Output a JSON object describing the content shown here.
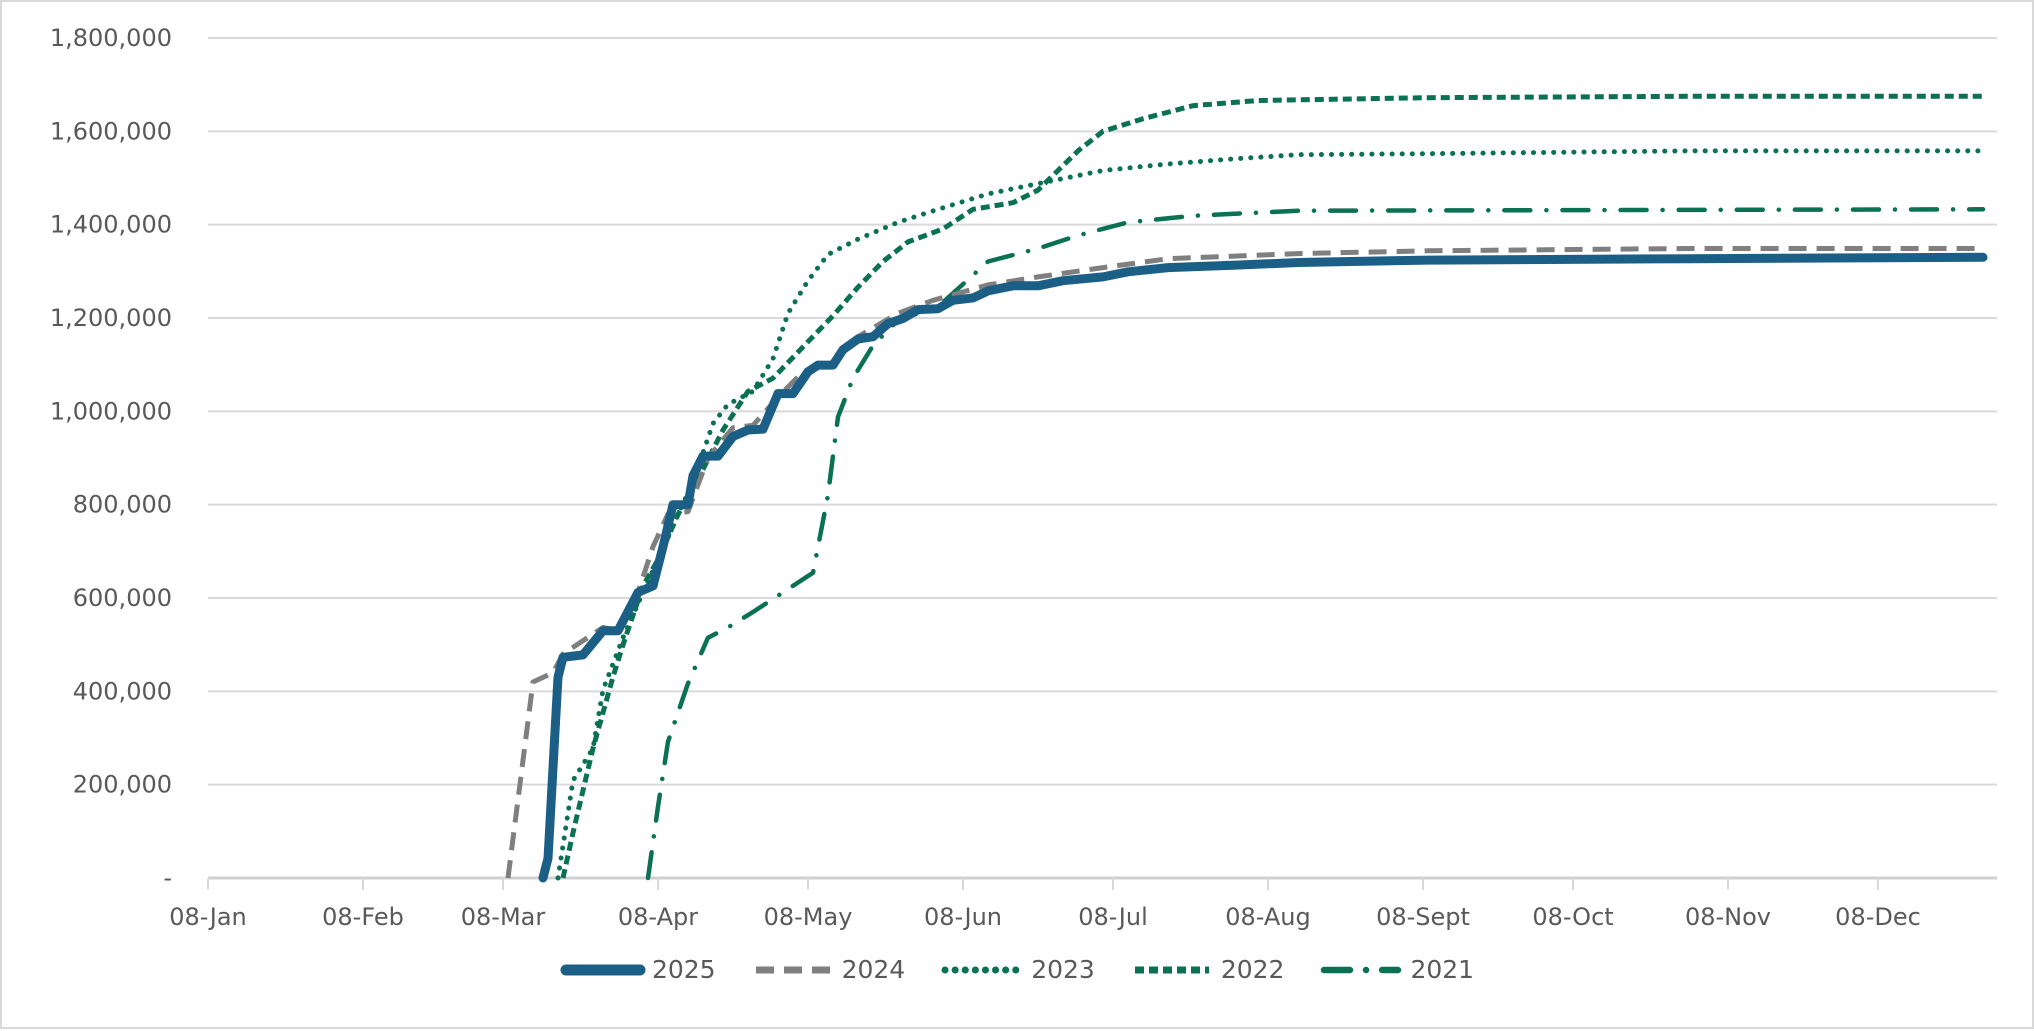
{
  "chart_data": {
    "type": "line",
    "title": "",
    "xlabel": "",
    "ylabel": "",
    "ylim": [
      0,
      1800000
    ],
    "yticks": [
      0,
      200000,
      400000,
      600000,
      800000,
      1000000,
      1200000,
      1400000,
      1600000,
      1800000
    ],
    "ytick_labels": [
      "-",
      "200,000",
      "400,000",
      "600,000",
      "800,000",
      "1,000,000",
      "1,200,000",
      "1,400,000",
      "1,600,000",
      "1,800,000"
    ],
    "xtick_labels": [
      "08-Jan",
      "08-Feb",
      "08-Mar",
      "08-Apr",
      "08-May",
      "08-Jun",
      "08-Jul",
      "08-Aug",
      "08-Sept",
      "08-Oct",
      "08-Nov",
      "08-Dec"
    ],
    "xlim": [
      "01-08",
      "12-31"
    ],
    "grid": "horizontal",
    "legend_position": "bottom",
    "series": [
      {
        "name": "2025",
        "color": "#1c5f86",
        "style": "solid-thick",
        "points": [
          [
            "03-16",
            0
          ],
          [
            "03-17",
            42000
          ],
          [
            "03-18",
            236000
          ],
          [
            "03-19",
            430000
          ],
          [
            "03-20",
            473000
          ],
          [
            "03-24",
            478000
          ],
          [
            "03-28",
            530000
          ],
          [
            "03-31",
            530000
          ],
          [
            "04-04",
            612000
          ],
          [
            "04-07",
            626000
          ],
          [
            "04-09",
            710000
          ],
          [
            "04-11",
            800000
          ],
          [
            "04-14",
            800000
          ],
          [
            "04-15",
            862000
          ],
          [
            "04-17",
            904000
          ],
          [
            "04-20",
            904000
          ],
          [
            "04-23",
            946000
          ],
          [
            "04-26",
            960000
          ],
          [
            "04-29",
            962000
          ],
          [
            "05-02",
            1038000
          ],
          [
            "05-05",
            1038000
          ],
          [
            "05-08",
            1085000
          ],
          [
            "05-10",
            1099000
          ],
          [
            "05-13",
            1099000
          ],
          [
            "05-15",
            1132000
          ],
          [
            "05-18",
            1155000
          ],
          [
            "05-21",
            1160000
          ],
          [
            "05-24",
            1188000
          ],
          [
            "05-27",
            1199000
          ],
          [
            "05-30",
            1218000
          ],
          [
            "06-03",
            1220000
          ],
          [
            "06-06",
            1238000
          ],
          [
            "06-10",
            1243000
          ],
          [
            "06-13",
            1258000
          ],
          [
            "06-18",
            1269000
          ],
          [
            "06-23",
            1269000
          ],
          [
            "06-28",
            1280000
          ],
          [
            "07-06",
            1288000
          ],
          [
            "07-11",
            1299000
          ],
          [
            "07-19",
            1308000
          ],
          [
            "08-01",
            1313000
          ],
          [
            "08-14",
            1319000
          ],
          [
            "09-09",
            1324000
          ],
          [
            "10-31",
            1327000
          ],
          [
            "12-29",
            1330000
          ]
        ]
      },
      {
        "name": "2024",
        "color": "#7f7f7f",
        "style": "long-dash",
        "points": [
          [
            "03-09",
            0
          ],
          [
            "03-14",
            420000
          ],
          [
            "03-18",
            440000
          ],
          [
            "03-20",
            480000
          ],
          [
            "03-28",
            537000
          ],
          [
            "03-31",
            530000
          ],
          [
            "04-04",
            612000
          ],
          [
            "04-07",
            710000
          ],
          [
            "04-10",
            780000
          ],
          [
            "04-14",
            785000
          ],
          [
            "04-18",
            900000
          ],
          [
            "04-23",
            965000
          ],
          [
            "04-27",
            970000
          ],
          [
            "05-02",
            1030000
          ],
          [
            "05-07",
            1085000
          ],
          [
            "05-13",
            1107000
          ],
          [
            "05-18",
            1160000
          ],
          [
            "05-26",
            1210000
          ],
          [
            "06-02",
            1238000
          ],
          [
            "06-13",
            1271000
          ],
          [
            "06-23",
            1288000
          ],
          [
            "07-06",
            1308000
          ],
          [
            "07-19",
            1327000
          ],
          [
            "08-14",
            1338000
          ],
          [
            "09-09",
            1344000
          ],
          [
            "10-31",
            1349000
          ],
          [
            "12-29",
            1349000
          ]
        ]
      },
      {
        "name": "2023",
        "color": "#0a7152",
        "style": "dotted",
        "points": [
          [
            "03-19",
            0
          ],
          [
            "03-22",
            209000
          ],
          [
            "03-26",
            278000
          ],
          [
            "03-28",
            403000
          ],
          [
            "04-01",
            515000
          ],
          [
            "04-05",
            612000
          ],
          [
            "04-08",
            682000
          ],
          [
            "04-12",
            779000
          ],
          [
            "04-15",
            849000
          ],
          [
            "04-19",
            974000
          ],
          [
            "04-22",
            1015000
          ],
          [
            "04-27",
            1043000
          ],
          [
            "05-01",
            1113000
          ],
          [
            "05-04",
            1210000
          ],
          [
            "05-08",
            1280000
          ],
          [
            "05-12",
            1336000
          ],
          [
            "05-18",
            1369000
          ],
          [
            "05-26",
            1405000
          ],
          [
            "06-03",
            1433000
          ],
          [
            "06-13",
            1466000
          ],
          [
            "06-23",
            1488000
          ],
          [
            "07-06",
            1516000
          ],
          [
            "07-19",
            1530000
          ],
          [
            "08-01",
            1541000
          ],
          [
            "08-14",
            1550000
          ],
          [
            "09-09",
            1552000
          ],
          [
            "10-31",
            1558000
          ],
          [
            "12-29",
            1558000
          ]
        ]
      },
      {
        "name": "2022",
        "color": "#0a7152",
        "style": "short-dash",
        "points": [
          [
            "03-20",
            0
          ],
          [
            "03-22",
            97000
          ],
          [
            "03-26",
            278000
          ],
          [
            "03-30",
            431000
          ],
          [
            "04-01",
            500000
          ],
          [
            "04-05",
            626000
          ],
          [
            "04-08",
            682000
          ],
          [
            "04-12",
            779000
          ],
          [
            "04-17",
            876000
          ],
          [
            "04-21",
            960000
          ],
          [
            "04-26",
            1043000
          ],
          [
            "05-01",
            1071000
          ],
          [
            "05-06",
            1127000
          ],
          [
            "05-13",
            1205000
          ],
          [
            "05-18",
            1266000
          ],
          [
            "05-23",
            1321000
          ],
          [
            "05-28",
            1363000
          ],
          [
            "06-04",
            1391000
          ],
          [
            "06-10",
            1433000
          ],
          [
            "06-18",
            1447000
          ],
          [
            "06-23",
            1474000
          ],
          [
            "07-01",
            1558000
          ],
          [
            "07-06",
            1600000
          ],
          [
            "07-14",
            1627000
          ],
          [
            "07-24",
            1655000
          ],
          [
            "08-06",
            1666000
          ],
          [
            "09-09",
            1672000
          ],
          [
            "10-31",
            1675000
          ],
          [
            "12-29",
            1675000
          ]
        ]
      },
      {
        "name": "2021",
        "color": "#0a7152",
        "style": "dash-dot",
        "points": [
          [
            "04-06",
            0
          ],
          [
            "04-08",
            153000
          ],
          [
            "04-10",
            292000
          ],
          [
            "04-14",
            417000
          ],
          [
            "04-18",
            515000
          ],
          [
            "04-22",
            537000
          ],
          [
            "04-27",
            570000
          ],
          [
            "05-03",
            612000
          ],
          [
            "05-09",
            654000
          ],
          [
            "05-12",
            821000
          ],
          [
            "05-14",
            988000
          ],
          [
            "05-17",
            1071000
          ],
          [
            "05-21",
            1141000
          ],
          [
            "05-26",
            1196000
          ],
          [
            "06-03",
            1224000
          ],
          [
            "06-13",
            1321000
          ],
          [
            "06-23",
            1349000
          ],
          [
            "07-01",
            1377000
          ],
          [
            "07-11",
            1405000
          ],
          [
            "07-24",
            1419000
          ],
          [
            "08-14",
            1430000
          ],
          [
            "12-29",
            1433000
          ]
        ]
      }
    ]
  }
}
